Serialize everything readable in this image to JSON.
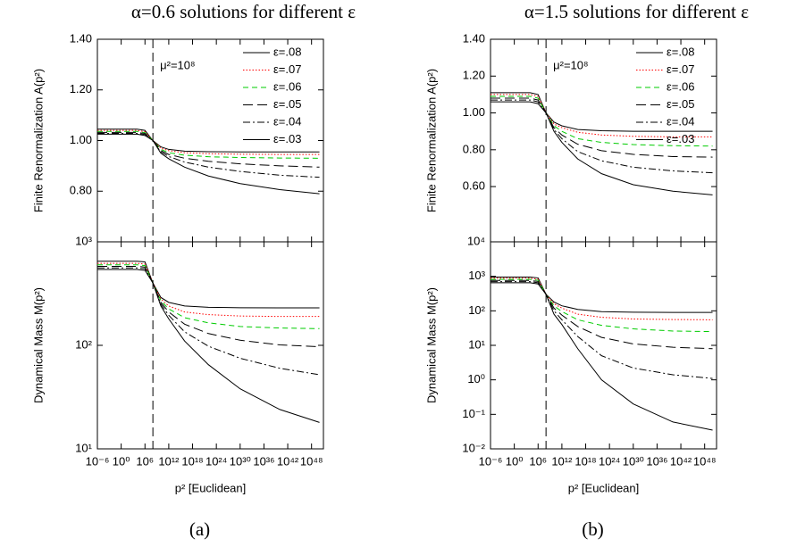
{
  "chart_data": [
    {
      "type": "line",
      "title": "α=0.6 solutions for different ε",
      "ylabel": "Finite Renormalization A(p²)",
      "xlog": true,
      "ylog": false,
      "ylim": [
        0.6,
        1.4
      ],
      "yticks": [
        {
          "value": 0.8,
          "label": "0.80"
        },
        {
          "value": 1.0,
          "label": "1.00"
        },
        {
          "value": 1.2,
          "label": "1.20"
        },
        {
          "value": 1.4,
          "label": "1.40"
        }
      ],
      "legend": "upper right",
      "annotation": {
        "text": "μ²=10⁸",
        "x": 100000000.0
      },
      "x": [
        1e-06,
        10000.0,
        1000000.0,
        100000000.0,
        10000000000.0,
        1000000000000.0,
        1e+16,
        1e+22,
        1e+30,
        1e+40,
        1e+50
      ],
      "series": [
        {
          "name": "ε=.08",
          "color": "#000000",
          "dash": "solid",
          "values": [
            1.045,
            1.045,
            1.04,
            1.0,
            0.975,
            0.965,
            0.958,
            0.956,
            0.955,
            0.955,
            0.955
          ]
        },
        {
          "name": "ε=.07",
          "color": "#ff0000",
          "dash": "dotted",
          "values": [
            1.04,
            1.04,
            1.035,
            1.0,
            0.97,
            0.96,
            0.952,
            0.948,
            0.946,
            0.945,
            0.945
          ]
        },
        {
          "name": "ε=.06",
          "color": "#00cc00",
          "dash": "dashed",
          "values": [
            1.036,
            1.036,
            1.031,
            1.0,
            0.965,
            0.952,
            0.942,
            0.936,
            0.933,
            0.931,
            0.93
          ]
        },
        {
          "name": "ε=.05",
          "color": "#000000",
          "dash": "longdash",
          "values": [
            1.032,
            1.032,
            1.028,
            1.0,
            0.96,
            0.945,
            0.93,
            0.918,
            0.908,
            0.9,
            0.895
          ]
        },
        {
          "name": "ε=.04",
          "color": "#000000",
          "dash": "dashdot",
          "values": [
            1.028,
            1.028,
            1.024,
            1.0,
            0.955,
            0.937,
            0.915,
            0.895,
            0.878,
            0.863,
            0.855
          ]
        },
        {
          "name": "ε=.03",
          "color": "#000000",
          "dash": "solid",
          "values": [
            1.025,
            1.025,
            1.02,
            1.0,
            0.95,
            0.928,
            0.895,
            0.86,
            0.83,
            0.806,
            0.79
          ]
        }
      ]
    },
    {
      "type": "line",
      "ylabel": "Dynamical Mass M(p²)",
      "xlabel": "p² [Euclidean]",
      "caption": "(a)",
      "xlog": true,
      "ylog": true,
      "xlim": [
        1e-06,
        1e+51
      ],
      "ylim": [
        10,
        1000
      ],
      "xticks": [
        {
          "value": 1e-06,
          "label": "10⁻⁶"
        },
        {
          "value": 1,
          "label": "10⁰"
        },
        {
          "value": 1000000.0,
          "label": "10⁶"
        },
        {
          "value": 1000000000000.0,
          "label": "10¹²"
        },
        {
          "value": 1e+18,
          "label": "10¹⁸"
        },
        {
          "value": 1e+24,
          "label": "10²⁴"
        },
        {
          "value": 1e+30,
          "label": "10³⁰"
        },
        {
          "value": 1e+36,
          "label": "10³⁶"
        },
        {
          "value": 1e+42,
          "label": "10⁴²"
        },
        {
          "value": 1e+48,
          "label": "10⁴⁸"
        }
      ],
      "yticks": [
        {
          "value": 10,
          "label": "10¹"
        },
        {
          "value": 100,
          "label": "10²"
        },
        {
          "value": 1000,
          "label": "10³"
        }
      ],
      "x": [
        1e-06,
        10000.0,
        1000000.0,
        100000000.0,
        10000000000.0,
        1000000000000.0,
        1e+16,
        1e+22,
        1e+30,
        1e+40,
        1e+50
      ],
      "series": [
        {
          "color": "#000000",
          "dash": "solid",
          "values": [
            650,
            650,
            640,
            400,
            290,
            260,
            240,
            233,
            231,
            230,
            230
          ]
        },
        {
          "color": "#ff0000",
          "dash": "dotted",
          "values": [
            620,
            620,
            610,
            400,
            280,
            240,
            210,
            198,
            192,
            190,
            190
          ]
        },
        {
          "color": "#00cc00",
          "dash": "dashed",
          "values": [
            600,
            600,
            590,
            400,
            270,
            225,
            185,
            165,
            152,
            147,
            145
          ]
        },
        {
          "color": "#000000",
          "dash": "longdash",
          "values": [
            580,
            580,
            570,
            400,
            260,
            210,
            160,
            130,
            112,
            101,
            97
          ]
        },
        {
          "color": "#000000",
          "dash": "dashdot",
          "values": [
            560,
            560,
            550,
            400,
            250,
            195,
            135,
            98,
            75,
            60,
            52
          ]
        },
        {
          "color": "#000000",
          "dash": "solid",
          "values": [
            540,
            540,
            530,
            400,
            240,
            180,
            110,
            65,
            38,
            24,
            18
          ]
        }
      ]
    },
    {
      "type": "line",
      "title": "α=1.5 solutions for different ε",
      "ylabel": "Finite Renormalization A(p²)",
      "xlog": true,
      "ylog": false,
      "ylim": [
        0.3,
        1.4
      ],
      "yticks": [
        {
          "value": 0.6,
          "label": "0.60"
        },
        {
          "value": 0.8,
          "label": "0.80"
        },
        {
          "value": 1.0,
          "label": "1.00"
        },
        {
          "value": 1.2,
          "label": "1.20"
        },
        {
          "value": 1.4,
          "label": "1.40"
        }
      ],
      "legend": "upper right",
      "annotation": {
        "text": "μ²=10⁸",
        "x": 100000000.0
      },
      "x": [
        1e-06,
        10000.0,
        1000000.0,
        100000000.0,
        10000000000.0,
        1000000000000.0,
        1e+16,
        1e+22,
        1e+30,
        1e+40,
        1e+50
      ],
      "series": [
        {
          "name": "ε=.08",
          "color": "#000000",
          "dash": "solid",
          "values": [
            1.11,
            1.11,
            1.1,
            1.0,
            0.95,
            0.93,
            0.91,
            0.903,
            0.9,
            0.9,
            0.9
          ]
        },
        {
          "name": "ε=.07",
          "color": "#ff0000",
          "dash": "dotted",
          "values": [
            1.1,
            1.1,
            1.09,
            1.0,
            0.94,
            0.92,
            0.895,
            0.88,
            0.873,
            0.87,
            0.87
          ]
        },
        {
          "name": "ε=.06",
          "color": "#00cc00",
          "dash": "dashed",
          "values": [
            1.09,
            1.09,
            1.08,
            1.0,
            0.93,
            0.9,
            0.86,
            0.84,
            0.828,
            0.822,
            0.82
          ]
        },
        {
          "name": "ε=.05",
          "color": "#000000",
          "dash": "longdash",
          "values": [
            1.08,
            1.08,
            1.07,
            1.0,
            0.92,
            0.88,
            0.83,
            0.795,
            0.775,
            0.763,
            0.76
          ]
        },
        {
          "name": "ε=.04",
          "color": "#000000",
          "dash": "dashdot",
          "values": [
            1.07,
            1.07,
            1.06,
            1.0,
            0.91,
            0.86,
            0.79,
            0.74,
            0.705,
            0.685,
            0.675
          ]
        },
        {
          "name": "ε=.03",
          "color": "#000000",
          "dash": "solid",
          "values": [
            1.06,
            1.06,
            1.05,
            1.0,
            0.9,
            0.84,
            0.75,
            0.67,
            0.61,
            0.575,
            0.555
          ]
        }
      ]
    },
    {
      "type": "line",
      "ylabel": "Dynamical Mass M(p²)",
      "xlabel": "p² [Euclidean]",
      "caption": "(b)",
      "xlog": true,
      "ylog": true,
      "xlim": [
        1e-06,
        1e+51
      ],
      "ylim": [
        0.01,
        10000
      ],
      "xticks": [
        {
          "value": 1e-06,
          "label": "10⁻⁶"
        },
        {
          "value": 1,
          "label": "10⁰"
        },
        {
          "value": 1000000.0,
          "label": "10⁶"
        },
        {
          "value": 1000000000000.0,
          "label": "10¹²"
        },
        {
          "value": 1e+18,
          "label": "10¹⁸"
        },
        {
          "value": 1e+24,
          "label": "10²⁴"
        },
        {
          "value": 1e+30,
          "label": "10³⁰"
        },
        {
          "value": 1e+36,
          "label": "10³⁶"
        },
        {
          "value": 1e+42,
          "label": "10⁴²"
        },
        {
          "value": 1e+48,
          "label": "10⁴⁸"
        }
      ],
      "yticks": [
        {
          "value": 0.01,
          "label": "10⁻²"
        },
        {
          "value": 0.1,
          "label": "10⁻¹"
        },
        {
          "value": 1,
          "label": "10⁰"
        },
        {
          "value": 10,
          "label": "10¹"
        },
        {
          "value": 100,
          "label": "10²"
        },
        {
          "value": 1000,
          "label": "10³"
        },
        {
          "value": 10000,
          "label": "10⁴"
        }
      ],
      "x": [
        1e-06,
        10000.0,
        1000000.0,
        100000000.0,
        10000000000.0,
        1000000000000.0,
        1e+16,
        1e+22,
        1e+30,
        1e+40,
        1e+50
      ],
      "series": [
        {
          "color": "#000000",
          "dash": "solid",
          "values": [
            950,
            950,
            900,
            300,
            180,
            140,
            110,
            95,
            91,
            90,
            90
          ]
        },
        {
          "color": "#ff0000",
          "dash": "dotted",
          "values": [
            880,
            880,
            830,
            300,
            160,
            120,
            80,
            65,
            58,
            56,
            55
          ]
        },
        {
          "color": "#00cc00",
          "dash": "dashed",
          "values": [
            820,
            820,
            770,
            300,
            140,
            95,
            55,
            38,
            30,
            26,
            25
          ]
        },
        {
          "color": "#000000",
          "dash": "longdash",
          "values": [
            760,
            760,
            710,
            300,
            120,
            75,
            35,
            17,
            11,
            8.8,
            8
          ]
        },
        {
          "color": "#000000",
          "dash": "dashdot",
          "values": [
            700,
            700,
            650,
            300,
            100,
            55,
            18,
            5,
            2.2,
            1.4,
            1.1
          ]
        },
        {
          "color": "#000000",
          "dash": "solid",
          "values": [
            650,
            650,
            600,
            300,
            80,
            40,
            8,
            1,
            0.2,
            0.06,
            0.035
          ]
        }
      ]
    }
  ]
}
